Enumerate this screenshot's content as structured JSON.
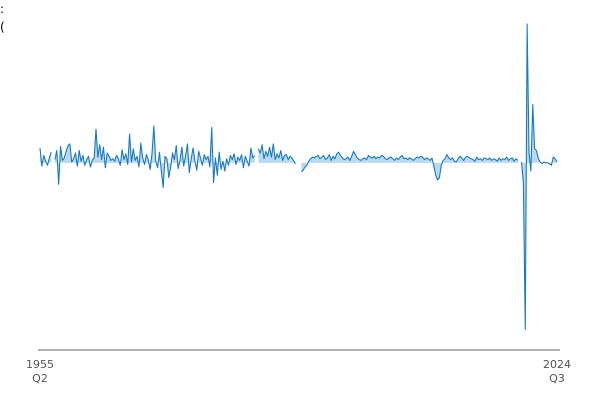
{
  "chart_data": {
    "type": "area",
    "title": ":",
    "subtitle": "(",
    "categories": [
      "1955 Q2",
      null,
      null,
      null,
      null,
      null,
      null,
      null,
      null,
      null,
      null,
      null,
      null,
      null,
      null,
      null,
      null,
      null,
      null,
      null,
      null,
      null,
      null,
      null,
      null,
      null,
      null,
      null,
      null,
      null,
      null,
      null,
      null,
      null,
      null,
      null,
      null,
      null,
      null,
      null,
      null,
      null,
      null,
      null,
      null,
      null,
      null,
      null,
      null,
      null,
      null,
      null,
      null,
      null,
      null,
      null,
      null,
      null,
      null,
      null,
      null,
      null,
      null,
      null,
      null,
      null,
      null,
      null,
      null,
      null,
      null,
      null,
      null,
      null,
      null,
      null,
      null,
      null,
      null,
      null,
      null,
      null,
      null,
      null,
      null,
      null,
      null,
      null,
      null,
      null,
      null,
      null,
      null,
      null,
      null,
      null,
      null,
      null,
      null,
      null,
      null,
      null,
      null,
      null,
      null,
      null,
      null,
      null,
      null,
      null,
      null,
      null,
      null,
      null,
      null,
      null,
      null,
      null,
      null,
      null,
      null,
      null,
      null,
      null,
      null,
      null,
      null,
      null,
      null,
      null,
      null,
      null,
      null,
      null,
      null,
      null,
      null,
      null,
      null,
      null,
      null,
      null,
      null,
      null,
      null,
      null,
      null,
      null,
      null,
      null,
      null,
      null,
      null,
      null,
      null,
      null,
      null,
      null,
      null,
      null,
      null,
      null,
      null,
      null,
      null,
      null,
      null,
      null,
      null,
      null,
      null,
      null,
      null,
      null,
      null,
      null,
      null,
      null,
      null,
      null,
      null,
      null,
      null,
      null,
      null,
      null,
      null,
      null,
      null,
      null,
      null,
      null,
      null,
      null,
      null,
      null,
      null,
      null,
      null,
      null,
      null,
      null,
      null,
      null,
      null,
      null,
      null,
      null,
      null,
      null,
      null,
      null,
      null,
      null,
      null,
      null,
      null,
      null,
      null,
      null,
      null,
      null,
      null,
      null,
      null,
      null,
      null,
      null,
      null,
      null,
      null,
      null,
      null,
      null,
      null,
      null,
      null,
      null,
      null,
      null,
      null,
      null,
      null,
      null,
      null,
      null,
      null,
      null,
      null,
      null,
      null,
      null,
      null,
      null,
      null,
      null,
      null,
      null,
      null,
      null,
      null,
      null,
      null,
      null,
      null,
      null,
      null,
      null,
      null,
      null,
      null,
      null,
      null,
      null,
      null,
      null,
      null,
      "2024 Q3"
    ],
    "series": [
      {
        "color": "#1a7abf",
        "fill": "#a9d0ea",
        "values": [
          1.8,
          -0.4,
          0.9,
          0.2,
          -0.3,
          0.6,
          1.3,
          null,
          0.4,
          1.5,
          -2.6,
          2.0,
          0.3,
          0.6,
          1.4,
          2.1,
          2.3,
          0.1,
          0.5,
          1.2,
          -0.4,
          1.5,
          0.2,
          0.9,
          -0.3,
          0.4,
          0.8,
          -0.5,
          0.3,
          0.6,
          4.1,
          0.7,
          2.2,
          0.4,
          1.9,
          -0.6,
          1.2,
          0.8,
          0.3,
          0.5,
          0.2,
          0.9,
          0.5,
          -0.3,
          1.6,
          0.4,
          1.1,
          -0.2,
          3.5,
          0.1,
          1.7,
          0.3,
          0.8,
          -0.5,
          2.4,
          0.6,
          -0.2,
          1.0,
          0.4,
          -0.8,
          1.1,
          4.5,
          0.2,
          -0.6,
          1.3,
          -1.0,
          -3.0,
          0.8,
          0.5,
          -1.8,
          -0.5,
          1.2,
          0.4,
          2.1,
          -0.7,
          0.3,
          1.9,
          -0.4,
          0.9,
          2.3,
          -1.2,
          0.5,
          1.8,
          0.2,
          -0.9,
          1.4,
          0.6,
          -0.3,
          1.0,
          0.4,
          0.8,
          -0.5,
          4.3,
          -2.4,
          0.6,
          -1.5,
          1.3,
          -0.8,
          0.2,
          -1.0,
          0.5,
          -0.3,
          0.9,
          0.4,
          1.1,
          -0.2,
          0.7,
          0.3,
          1.0,
          -0.6,
          0.8,
          0.2,
          -0.4,
          1.8,
          0.6,
          0.9,
          null,
          1.7,
          1.2,
          2.2,
          0.5,
          1.4,
          0.8,
          1.9,
          0.7,
          2.3,
          0.4,
          1.1,
          0.6,
          1.5,
          0.3,
          0.9,
          1.0,
          0.4,
          0.8,
          0.6,
          0.2,
          -0.1,
          null,
          null,
          -1.1,
          -0.9,
          -0.5,
          -0.3,
          0.2,
          0.5,
          0.7,
          0.6,
          0.8,
          0.9,
          0.5,
          0.7,
          0.9,
          0.4,
          0.6,
          1.0,
          0.3,
          0.8,
          0.5,
          1.1,
          1.3,
          0.9,
          0.6,
          0.4,
          0.5,
          0.7,
          0.3,
          0.8,
          1.4,
          1.0,
          0.6,
          0.4,
          0.3,
          0.5,
          0.6,
          0.4,
          0.9,
          0.7,
          0.6,
          0.8,
          0.5,
          0.7,
          0.6,
          0.9,
          0.8,
          0.5,
          0.4,
          0.6,
          0.7,
          0.5,
          0.3,
          0.6,
          0.4,
          0.7,
          0.9,
          0.5,
          0.6,
          0.4,
          0.6,
          0.5,
          0.3,
          0.5,
          0.7,
          0.6,
          0.8,
          0.7,
          0.4,
          0.6,
          0.5,
          0.3,
          0.6,
          -0.4,
          -1.5,
          -2.1,
          -1.8,
          -0.3,
          0.3,
          0.5,
          1.0,
          0.6,
          0.4,
          0.6,
          0.2,
          0.1,
          0.5,
          0.8,
          0.6,
          0.3,
          0.7,
          0.8,
          0.6,
          0.5,
          0.4,
          0.2,
          0.7,
          0.4,
          0.5,
          0.3,
          0.6,
          0.5,
          0.4,
          0.6,
          0.3,
          0.5,
          0.4,
          0.2,
          0.6,
          0.3,
          0.5,
          0.4,
          0.7,
          0.3,
          0.5,
          0.6,
          0.2,
          0.5,
          0.3,
          null,
          0.1,
          -2.5,
          -20.3,
          16.9,
          1.3,
          -1.0,
          7.1,
          1.7,
          1.5,
          0.5,
          0.1,
          -0.1,
          0.1,
          0.0,
          0.0,
          -0.1,
          -0.3,
          0.7,
          0.5,
          0.1
        ]
      }
    ],
    "ylim": [
      -22.8,
      17.4
    ]
  }
}
